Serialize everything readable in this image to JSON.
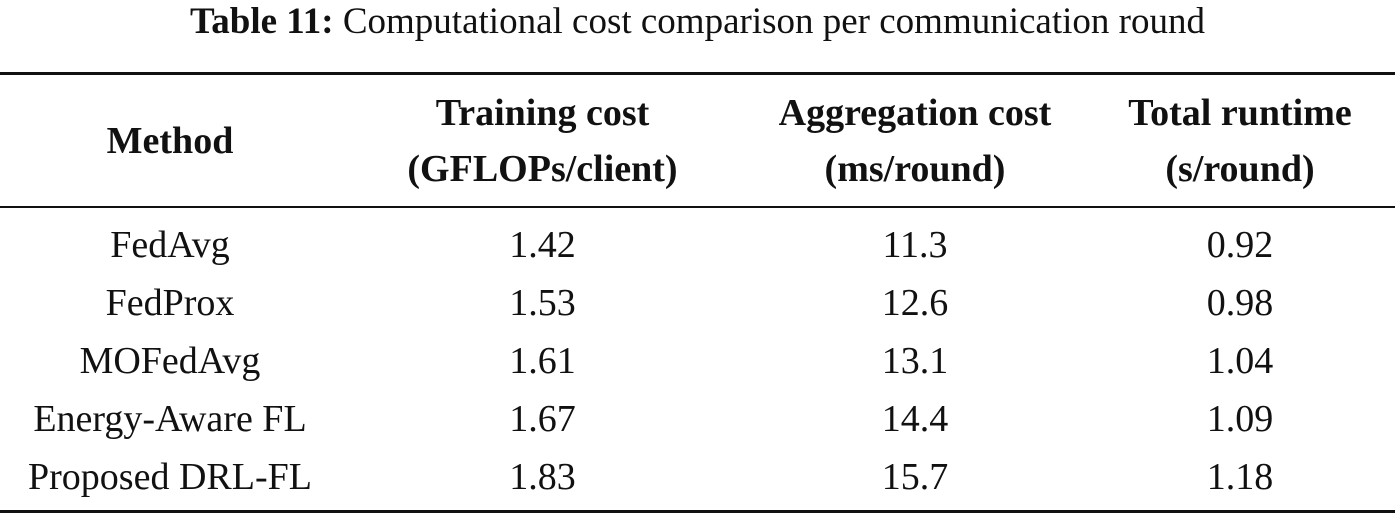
{
  "caption": {
    "label": "Table 11:",
    "text": "Computational cost comparison per communication round"
  },
  "table": {
    "headers": [
      {
        "line1": "Method",
        "line2": ""
      },
      {
        "line1": "Training cost",
        "line2": "(GFLOPs/client)"
      },
      {
        "line1": "Aggregation cost",
        "line2": "(ms/round)"
      },
      {
        "line1": "Total runtime",
        "line2": "(s/round)"
      }
    ],
    "rows": [
      [
        "FedAvg",
        "1.42",
        "11.3",
        "0.92"
      ],
      [
        "FedProx",
        "1.53",
        "12.6",
        "0.98"
      ],
      [
        "MOFedAvg",
        "1.61",
        "13.1",
        "1.04"
      ],
      [
        "Energy-Aware FL",
        "1.67",
        "14.4",
        "1.09"
      ],
      [
        "Proposed DRL-FL",
        "1.83",
        "15.7",
        "1.18"
      ]
    ]
  }
}
